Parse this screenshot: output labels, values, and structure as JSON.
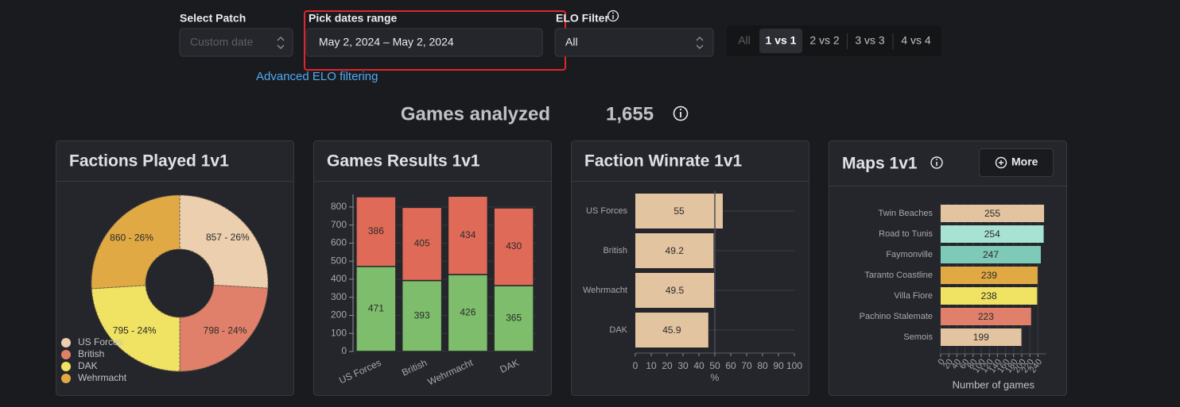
{
  "controls": {
    "patch": {
      "label": "Select Patch",
      "placeholder": "Custom date"
    },
    "dates": {
      "label": "Pick dates range",
      "value": "May 2, 2024 – May 2, 2024"
    },
    "elo": {
      "label": "ELO Filter",
      "value": "All"
    },
    "modes": [
      "All",
      "1 vs 1",
      "2 vs 2",
      "3 vs 3",
      "4 vs 4"
    ],
    "active_mode": 1
  },
  "advanced_link": "Advanced ELO filtering",
  "summary": {
    "label": "Games analyzed",
    "value": "1,655"
  },
  "chart_data": [
    {
      "type": "pie",
      "title": "Factions Played 1v1",
      "categories": [
        "US Forces",
        "British",
        "DAK",
        "Wehrmacht"
      ],
      "values": [
        857,
        798,
        795,
        860
      ],
      "value_labels": [
        "857 - 26%",
        "798 - 24%",
        "795 - 24%",
        "860 - 26%"
      ],
      "colors": [
        "#ebcfae",
        "#e0806a",
        "#f0e262",
        "#e0a943"
      ],
      "donut": true,
      "legend": "bottom-left"
    },
    {
      "type": "stacked_bar",
      "title": "Games Results 1v1",
      "categories": [
        "US Forces",
        "British",
        "Wehrmacht",
        "DAK"
      ],
      "series": [
        {
          "color": "#7dbd6c",
          "values": [
            471,
            393,
            426,
            365
          ]
        },
        {
          "color": "#e06a58",
          "values": [
            386,
            405,
            434,
            430
          ]
        }
      ],
      "ylim": [
        0,
        870
      ],
      "yticks": [
        0,
        100,
        200,
        300,
        400,
        500,
        600,
        700,
        800
      ],
      "grid": true
    },
    {
      "type": "hbar",
      "title": "Faction Winrate 1v1",
      "categories": [
        "US Forces",
        "British",
        "Wehrmacht",
        "DAK"
      ],
      "values": [
        55,
        49.2,
        49.5,
        45.9
      ],
      "color": "#e3c4a0",
      "xlim": [
        0,
        100
      ],
      "xticks": [
        0,
        10,
        20,
        30,
        40,
        50,
        60,
        70,
        80,
        90,
        100
      ],
      "xlabel": "%",
      "reference_line": 50,
      "grid": true
    },
    {
      "type": "hbar",
      "title": "Maps 1v1",
      "button": "More",
      "categories": [
        "Twin Beaches",
        "Road to Tunis",
        "Faymonville",
        "Taranto Coastline",
        "Villa Fiore",
        "Pachino Stalemate",
        "Semois"
      ],
      "values": [
        255,
        254,
        247,
        239,
        238,
        223,
        199
      ],
      "colors": [
        "#e3c4a0",
        "#a8e2d2",
        "#7ec9b8",
        "#e0a943",
        "#f0e262",
        "#e0806a",
        "#e3c4a0"
      ],
      "xlim": [
        0,
        260
      ],
      "xticks": [
        0,
        20,
        40,
        60,
        80,
        100,
        120,
        140,
        160,
        180,
        200,
        220,
        240
      ],
      "xlabel": "Number of games",
      "grid": true
    }
  ]
}
